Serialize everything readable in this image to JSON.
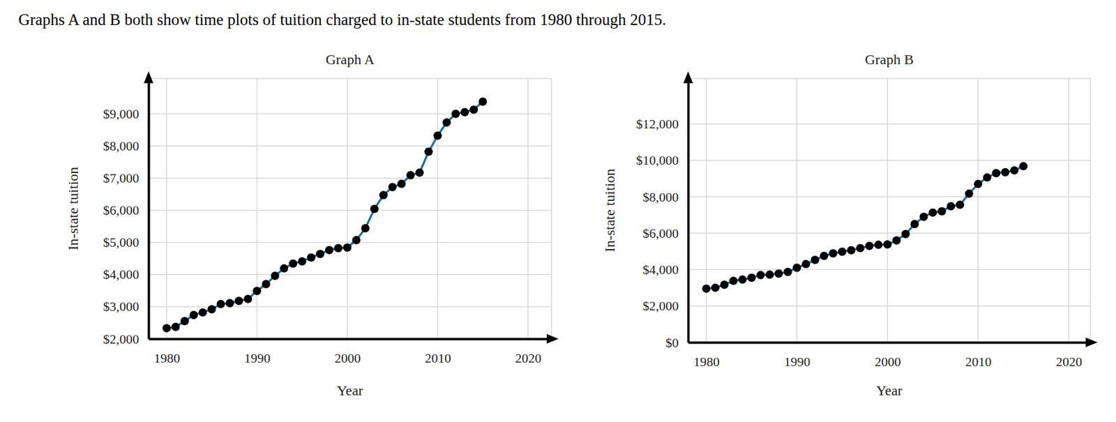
{
  "header": {
    "text": "Graphs A and B both show time plots of tuition charged to in-state students from 1980 through 2015."
  },
  "chart_data": [
    {
      "type": "line",
      "title": "Graph A",
      "xlabel": "Year",
      "ylabel": "In-state tuition",
      "x": [
        1980,
        1981,
        1982,
        1983,
        1984,
        1985,
        1986,
        1987,
        1988,
        1989,
        1990,
        1991,
        1992,
        1993,
        1994,
        1995,
        1996,
        1997,
        1998,
        1999,
        2000,
        2001,
        2002,
        2003,
        2004,
        2005,
        2006,
        2007,
        2008,
        2009,
        2010,
        2011,
        2012,
        2013,
        2014,
        2015
      ],
      "series": [
        {
          "color": "#1b6ea6",
          "marker": "circle",
          "line_style": "solid",
          "values": [
            2330,
            2370,
            2550,
            2740,
            2820,
            2920,
            3080,
            3110,
            3180,
            3240,
            3490,
            3700,
            3960,
            4190,
            4340,
            4410,
            4530,
            4640,
            4760,
            4820,
            4840,
            5070,
            5440,
            6040,
            6470,
            6720,
            6820,
            7090,
            7170,
            7820,
            8320,
            8730,
            9000,
            9050,
            9130,
            9380
          ]
        }
      ],
      "xlim": [
        1978,
        2022.6
      ],
      "xticks": [
        1980,
        1990,
        2000,
        2010,
        2020
      ],
      "ylim": [
        2000,
        10100
      ],
      "yticks": [
        {
          "value": 2000,
          "label": "$2,000"
        },
        {
          "value": 3000,
          "label": "$3,000"
        },
        {
          "value": 4000,
          "label": "$4,000"
        },
        {
          "value": 5000,
          "label": "$5,000"
        },
        {
          "value": 6000,
          "label": "$6,000"
        },
        {
          "value": 7000,
          "label": "$7,000"
        },
        {
          "value": 8000,
          "label": "$8,000"
        },
        {
          "value": 9000,
          "label": "$9,000"
        }
      ],
      "grid": true
    },
    {
      "type": "line",
      "title": "Graph B",
      "xlabel": "Year",
      "ylabel": "In-state tuition",
      "x": [
        1980,
        1981,
        1982,
        1983,
        1984,
        1985,
        1986,
        1987,
        1988,
        1989,
        1990,
        1991,
        1992,
        1993,
        1994,
        1995,
        1996,
        1997,
        1998,
        1999,
        2000,
        2001,
        2002,
        2003,
        2004,
        2005,
        2006,
        2007,
        2008,
        2009,
        2010,
        2011,
        2012,
        2013,
        2014,
        2015
      ],
      "series": [
        {
          "color": "#1b6ea6",
          "marker": "circle",
          "line_style": "solid",
          "values": [
            2950,
            3000,
            3170,
            3380,
            3450,
            3550,
            3700,
            3720,
            3780,
            3870,
            4100,
            4300,
            4530,
            4750,
            4890,
            4980,
            5060,
            5180,
            5300,
            5360,
            5380,
            5600,
            5950,
            6500,
            6900,
            7130,
            7200,
            7480,
            7560,
            8170,
            8700,
            9060,
            9300,
            9350,
            9450,
            9680
          ]
        }
      ],
      "xlim": [
        1978,
        2022.4
      ],
      "xticks": [
        1980,
        1990,
        2000,
        2010,
        2020
      ],
      "ylim": [
        0,
        14500
      ],
      "yticks": [
        {
          "value": 0,
          "label": "$0"
        },
        {
          "value": 2000,
          "label": "$2,000"
        },
        {
          "value": 4000,
          "label": "$4,000"
        },
        {
          "value": 6000,
          "label": "$6,000"
        },
        {
          "value": 8000,
          "label": "$8,000"
        },
        {
          "value": 10000,
          "label": "$10,000"
        },
        {
          "value": 12000,
          "label": "$12,000"
        }
      ],
      "grid": true
    }
  ]
}
